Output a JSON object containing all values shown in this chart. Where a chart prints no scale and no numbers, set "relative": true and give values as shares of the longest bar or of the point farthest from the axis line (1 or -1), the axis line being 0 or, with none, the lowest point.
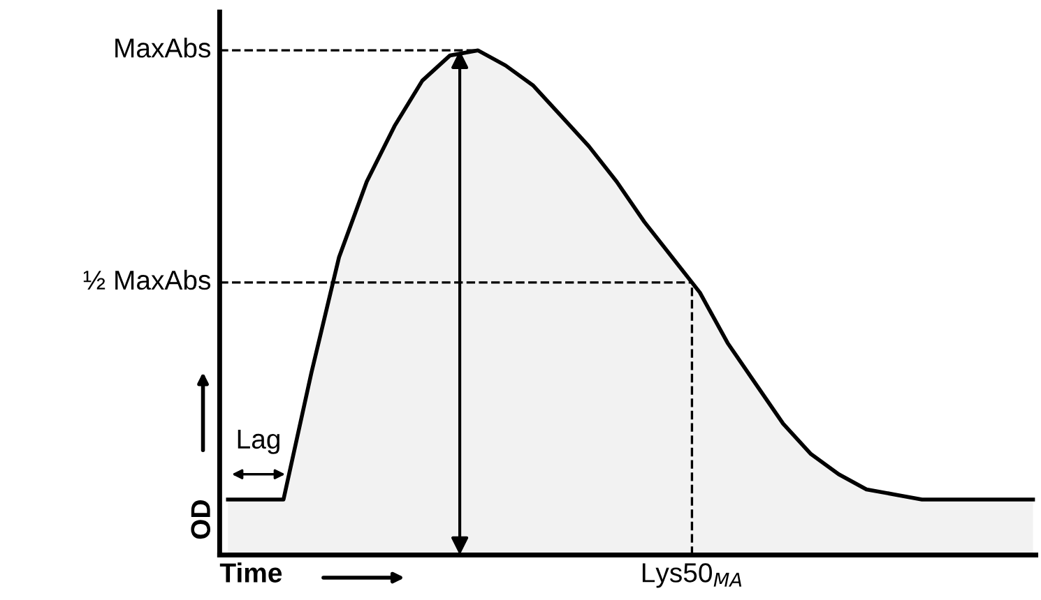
{
  "chart_data": {
    "type": "area",
    "relative": true,
    "xlabel": "Time",
    "ylabel": "OD",
    "categories": [
      null,
      null,
      null,
      null,
      null,
      null,
      null,
      null,
      null,
      null,
      null,
      null,
      null,
      null,
      null,
      null,
      null,
      null,
      null,
      null,
      null,
      null,
      null,
      null,
      null,
      null,
      null,
      null,
      null,
      null
    ],
    "series": [
      {
        "color": "#f2f2f2",
        "values": [
          0.11,
          0.11,
          0.11,
          0.36,
          0.59,
          0.74,
          0.85,
          0.94,
          0.99,
          1.0,
          0.97,
          0.93,
          0.87,
          0.81,
          0.74,
          0.66,
          0.59,
          0.52,
          0.42,
          0.34,
          0.26,
          0.2,
          0.16,
          0.13,
          0.12,
          0.11,
          0.11,
          0.11,
          0.11,
          0.11
        ]
      }
    ],
    "ref_lines": [
      {
        "axis": "y",
        "value": 1.0,
        "label": "MaxAbs",
        "line_style": "dashed"
      },
      {
        "axis": "y",
        "value": 0.54,
        "label": "½ MaxAbs",
        "line_style": "dashed"
      }
    ],
    "annotations": [
      "Lag",
      "Lys50$_{MA}$"
    ],
    "legend": false
  }
}
